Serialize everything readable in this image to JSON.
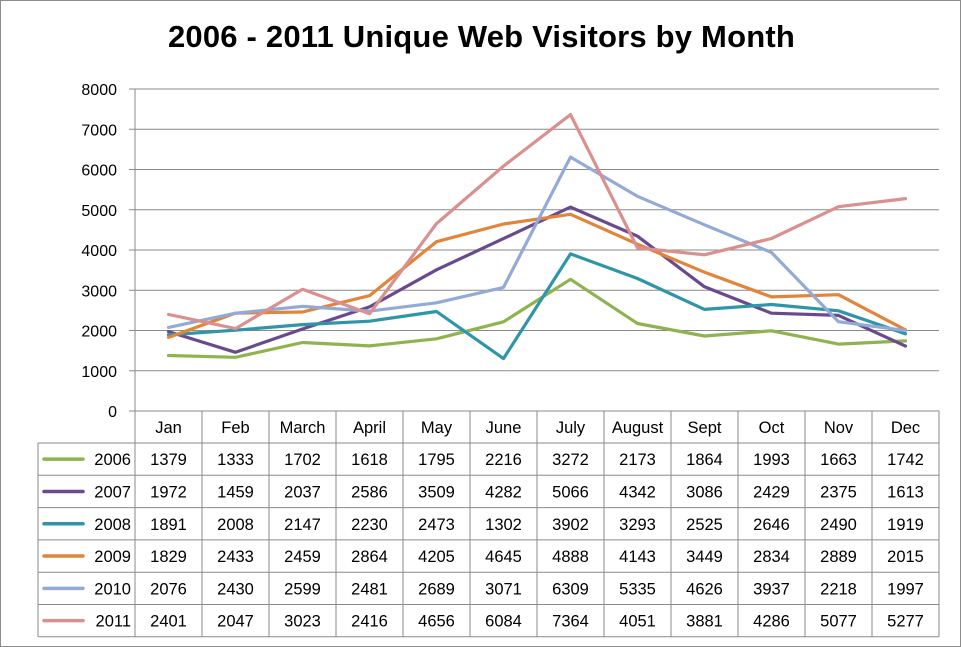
{
  "chart_data": {
    "type": "line",
    "title": "2006 - 2011 Unique Web Visitors by Month",
    "xlabel": "",
    "ylabel": "",
    "ylim": [
      0,
      8000
    ],
    "yticks": [
      0,
      1000,
      2000,
      3000,
      4000,
      5000,
      6000,
      7000,
      8000
    ],
    "grid": true,
    "legend": "data-table",
    "categories": [
      "Jan",
      "Feb",
      "March",
      "April",
      "May",
      "June",
      "July",
      "August",
      "Sept",
      "Oct",
      "Nov",
      "Dec"
    ],
    "series": [
      {
        "name": "2006",
        "color": "#8fb34e",
        "values": [
          1379,
          1333,
          1702,
          1618,
          1795,
          2216,
          3272,
          2173,
          1864,
          1993,
          1663,
          1742
        ]
      },
      {
        "name": "2007",
        "color": "#6a4a8e",
        "values": [
          1972,
          1459,
          2037,
          2586,
          3509,
          4282,
          5066,
          4342,
          3086,
          2429,
          2375,
          1613
        ]
      },
      {
        "name": "2008",
        "color": "#2f95a8",
        "values": [
          1891,
          2008,
          2147,
          2230,
          2473,
          1302,
          3902,
          3293,
          2525,
          2646,
          2490,
          1919
        ]
      },
      {
        "name": "2009",
        "color": "#e2843a",
        "values": [
          1829,
          2433,
          2459,
          2864,
          4205,
          4645,
          4888,
          4143,
          3449,
          2834,
          2889,
          2015
        ]
      },
      {
        "name": "2010",
        "color": "#93aad6",
        "values": [
          2076,
          2430,
          2599,
          2481,
          2689,
          3071,
          6309,
          5335,
          4626,
          3937,
          2218,
          1997
        ]
      },
      {
        "name": "2011",
        "color": "#d9908e",
        "values": [
          2401,
          2047,
          3023,
          2416,
          4656,
          6084,
          7364,
          4051,
          3881,
          4286,
          5077,
          5277
        ]
      }
    ]
  }
}
